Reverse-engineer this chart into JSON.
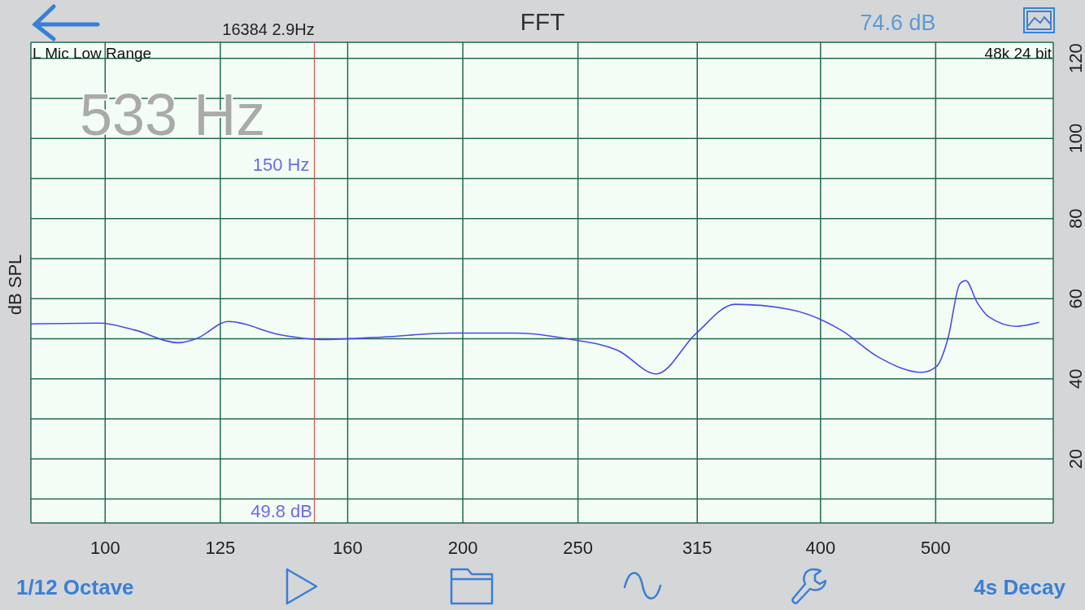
{
  "chart_data": {
    "type": "line",
    "title": "FFT",
    "ylabel": "dB SPL",
    "x": [
      86.6,
      99,
      105.8,
      115.2,
      119.3,
      127,
      140.3,
      151.6,
      170.9,
      195.3,
      221.6,
      246,
      270,
      291,
      314,
      339,
      377,
      417,
      447,
      487,
      501,
      512,
      524,
      530,
      542,
      554,
      585,
      611
    ],
    "series": [
      {
        "color": "#4a4af0",
        "values": [
          53.7,
          53.9,
          52.2,
          49.0,
          50.0,
          54.3,
          51.0,
          49.8,
          50.4,
          51.4,
          51.4,
          49.9,
          47.1,
          41.2,
          51.2,
          58.6,
          57.3,
          52.0,
          45.5,
          41.6,
          43.1,
          50.0,
          63.7,
          64.5,
          59.0,
          55.5,
          53.1,
          54.1
        ]
      }
    ],
    "log": "x",
    "grid": true,
    "marker": "none",
    "xlim": [
      86.6,
      628
    ],
    "xticks": [
      100,
      125,
      160,
      200,
      250,
      315,
      400,
      500
    ],
    "ylim": [
      4,
      124
    ],
    "yticks": [
      {
        "value": 10,
        "label": null
      },
      20,
      {
        "value": 30,
        "label": null
      },
      40,
      {
        "value": 50,
        "label": null
      },
      60,
      {
        "value": 70,
        "label": null
      },
      80,
      {
        "value": 90,
        "label": null
      },
      100,
      {
        "value": 110,
        "label": null
      },
      120
    ],
    "ref_lines": [
      {
        "axis": "x",
        "value": 150,
        "label": "150 Hz",
        "color": "#e05050"
      }
    ],
    "annotations": [
      "16384  2.9Hz",
      "74.6 dB",
      "L Mic Low Range",
      "48k 24 bit",
      "533 Hz",
      "49.8 dB",
      "1/12 Octave",
      "4s Decay"
    ]
  }
}
